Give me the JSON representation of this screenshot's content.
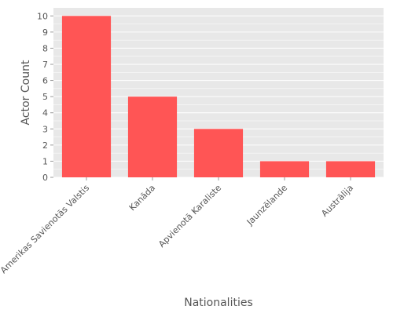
{
  "chart_data": {
    "type": "bar",
    "title": "",
    "xlabel": "Nationalities",
    "ylabel": "Actor Count",
    "categories": [
      "Amerikas Savienotās Valstis",
      "Kanāda",
      "Apvienotā Karaliste",
      "Jaunzēlande",
      "Austrālija"
    ],
    "values": [
      10,
      5,
      3,
      1,
      1
    ],
    "ylim": [
      0,
      10.5
    ],
    "yticks": [
      0,
      1,
      2,
      3,
      4,
      5,
      6,
      7,
      8,
      9,
      10
    ],
    "grid": true,
    "colors": {
      "bar": "#ff5555",
      "panel_background": "#e8e8e8",
      "grid": "#ffffff",
      "text": "#555555"
    }
  }
}
